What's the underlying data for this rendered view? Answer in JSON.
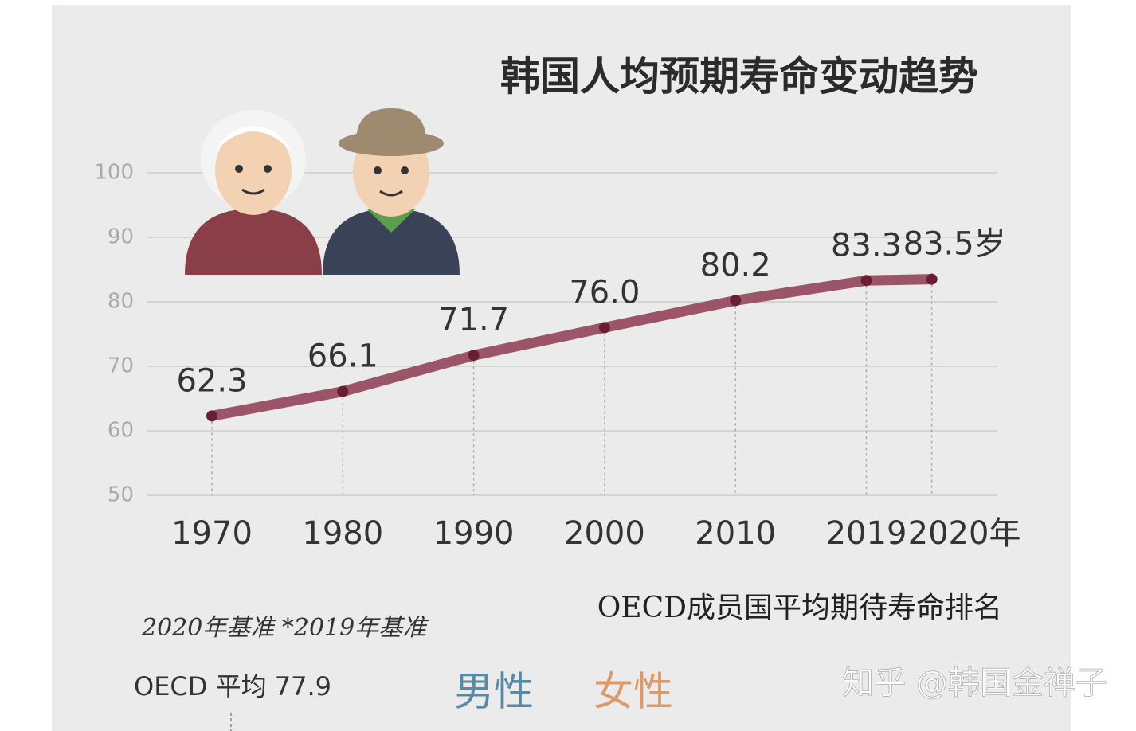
{
  "chart_data": {
    "type": "line",
    "title": "韩国人均预期寿命变动趋势",
    "categories": [
      "1970",
      "1980",
      "1990",
      "2000",
      "2010",
      "2019",
      "2020年"
    ],
    "series": [
      {
        "color": "#9c5468",
        "values": [
          62.3,
          66.1,
          71.7,
          76.0,
          80.2,
          83.3,
          83.5
        ],
        "value_labels": [
          "62.3",
          "66.1",
          "71.7",
          "76.0",
          "80.2",
          "83.3",
          "83.5岁"
        ]
      }
    ],
    "ylim": [
      50,
      100
    ],
    "yticks": [
      50,
      60,
      70,
      80,
      90,
      100
    ],
    "grid": true
  },
  "ranking": {
    "title": "OECD成员国平均期待寿命排名",
    "note": "2020年基准 *2019年基准",
    "oecd_average": "OECD 平均 77.9",
    "male": "男性",
    "female": "女性"
  },
  "watermark": "知乎 @韩国金禅子"
}
